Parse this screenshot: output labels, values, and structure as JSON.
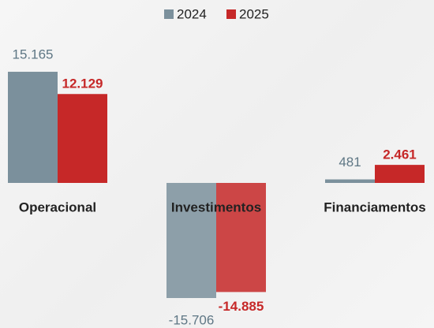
{
  "chart_data": {
    "type": "bar",
    "categories": [
      "Operacional",
      "Investimentos",
      "Financiamentos"
    ],
    "series": [
      {
        "name": "2024",
        "color": "#7b909c",
        "values": [
          15165,
          -15706,
          481
        ],
        "value_labels": [
          "15.165",
          "-15.706",
          "481"
        ]
      },
      {
        "name": "2025",
        "color": "#c62828",
        "values": [
          12129,
          -14885,
          2461
        ],
        "value_labels": [
          "12.129",
          "-14.885",
          "2.461"
        ]
      }
    ],
    "legend": "top"
  }
}
